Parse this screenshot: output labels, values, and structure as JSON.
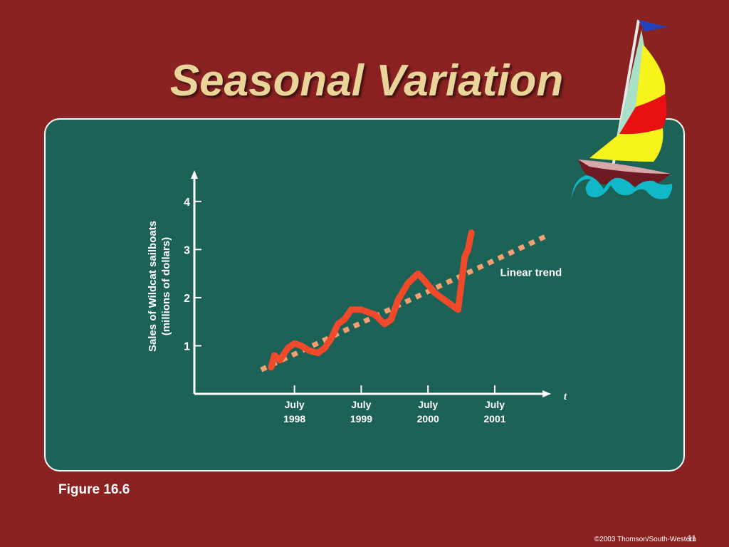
{
  "slide": {
    "title": "Seasonal Variation",
    "figure_label": "Figure 16.6",
    "copyright": "©2003 Thomson/South-Western",
    "page_number": "11"
  },
  "colors": {
    "background": "#8a2222",
    "panel": "#1c6256",
    "title": "#e9d49a",
    "series_actual": "#f04a2a",
    "series_trend": "#f4a070"
  },
  "icons": [
    "sailboat-clipart"
  ],
  "chart_data": {
    "type": "line",
    "ylabel_line1": "Sales of Wildcat sailboats",
    "ylabel_line2": "(millions of dollars)",
    "xlabel": "t",
    "ylim": [
      0,
      4.5
    ],
    "xlim": [
      1997.0,
      2002.3
    ],
    "yticks": [
      "1",
      "2",
      "3",
      "4"
    ],
    "ytick_values": [
      1,
      2,
      3,
      4
    ],
    "xticks": [
      {
        "line1": "July",
        "line2": "1998",
        "x": 1998.5
      },
      {
        "line1": "July",
        "line2": "1999",
        "x": 1999.5
      },
      {
        "line1": "July",
        "line2": "2000",
        "x": 2000.5
      },
      {
        "line1": "July",
        "line2": "2001",
        "x": 2001.5
      }
    ],
    "grid": false,
    "series": [
      {
        "style": "solid",
        "points": [
          [
            1998.15,
            0.55
          ],
          [
            1998.2,
            0.8
          ],
          [
            1998.28,
            0.7
          ],
          [
            1998.4,
            0.95
          ],
          [
            1998.5,
            1.05
          ],
          [
            1998.6,
            1.0
          ],
          [
            1998.72,
            0.9
          ],
          [
            1998.85,
            0.85
          ],
          [
            1998.95,
            0.95
          ],
          [
            1999.05,
            1.15
          ],
          [
            1999.15,
            1.45
          ],
          [
            1999.25,
            1.55
          ],
          [
            1999.35,
            1.75
          ],
          [
            1999.5,
            1.75
          ],
          [
            1999.6,
            1.7
          ],
          [
            1999.7,
            1.65
          ],
          [
            1999.85,
            1.45
          ],
          [
            1999.95,
            1.55
          ],
          [
            2000.05,
            1.95
          ],
          [
            2000.2,
            2.3
          ],
          [
            2000.35,
            2.5
          ],
          [
            2000.45,
            2.35
          ],
          [
            2000.6,
            2.1
          ],
          [
            2000.75,
            1.95
          ],
          [
            2000.85,
            1.85
          ],
          [
            2000.95,
            1.75
          ],
          [
            2001.05,
            2.85
          ],
          [
            2001.1,
            3.0
          ],
          [
            2001.15,
            3.35
          ]
        ]
      },
      {
        "name": "Linear trend",
        "style": "dotted",
        "points": [
          [
            1998.0,
            0.5
          ],
          [
            2002.3,
            3.3
          ]
        ]
      }
    ],
    "annotations": [
      {
        "text": "Linear trend",
        "x": 2001.58,
        "y": 2.45
      }
    ]
  }
}
